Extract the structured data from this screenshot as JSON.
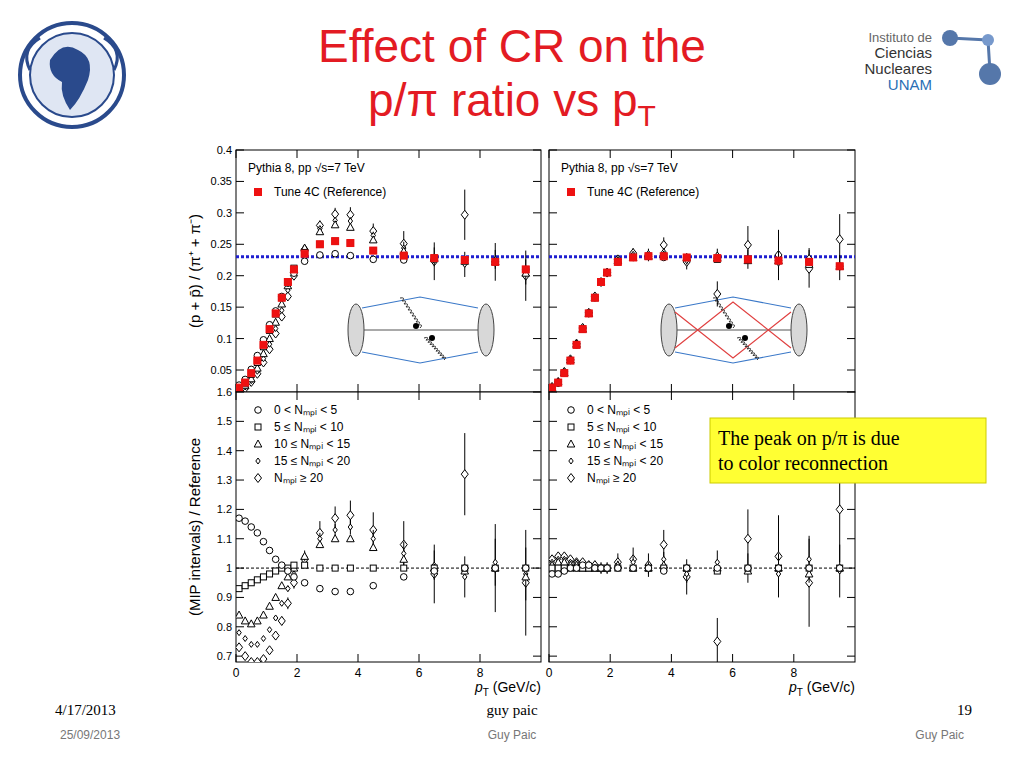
{
  "slide": {
    "title": [
      "Effect of CR on the",
      "p/π ratio vs pT"
    ],
    "logo_text": [
      "Instituto de",
      "Ciencias",
      "Nucleares",
      "UNAM"
    ],
    "annotation": [
      "The peak on p/π is due",
      "to color reconnection"
    ],
    "footer": {
      "date": "4/17/2013",
      "date_2": "25/09/2013",
      "center": "guy paic",
      "center_2": "Guy Paic",
      "page": "19",
      "right_2": "Guy Paic"
    }
  },
  "chart_data": [
    {
      "type": "scatter",
      "ylabel": "(p + p̄) / (π⁺ + π⁻)",
      "annotations": [
        "Pythia 8, pp √s=7 TeV"
      ],
      "legend": "top-left",
      "tick_labels": "y",
      "xlim": [
        0,
        10
      ],
      "xticks": [
        0,
        2,
        4,
        6,
        8
      ],
      "ylim": [
        0.015,
        0.4
      ],
      "yticks": [
        0.05,
        0.1,
        0.15,
        0.2,
        0.25,
        0.3,
        0.35,
        0.4
      ],
      "reference_line": {
        "value": 0.23,
        "color": "#1f1fd0",
        "line_style": "dotted"
      },
      "x": [
        0.1,
        0.3,
        0.5,
        0.7,
        0.9,
        1.1,
        1.3,
        1.5,
        1.7,
        1.9,
        2.25,
        2.75,
        3.25,
        3.75,
        4.5,
        5.5,
        6.5,
        7.5,
        8.5,
        9.5
      ],
      "series": [
        {
          "name": "Tune 4C (Reference)",
          "color": "#ee1111",
          "marker": "filled_square",
          "values": [
            0.022,
            0.03,
            0.045,
            0.065,
            0.09,
            0.115,
            0.14,
            0.165,
            0.19,
            0.21,
            0.235,
            0.25,
            0.255,
            0.252,
            0.24,
            0.232,
            0.228,
            0.225,
            0.222,
            0.21
          ]
        },
        {
          "color": "#000000",
          "marker": "circle",
          "values": [
            0.026,
            0.035,
            0.051,
            0.073,
            0.098,
            0.122,
            0.144,
            0.167,
            0.188,
            0.204,
            0.223,
            0.233,
            0.235,
            0.232,
            0.226,
            0.225,
            0.226,
            0.225,
            0.222,
            0.21
          ]
        },
        {
          "color": "#000000",
          "marker": "square",
          "values": [
            0.02,
            0.028,
            0.043,
            0.062,
            0.087,
            0.113,
            0.139,
            0.165,
            0.19,
            0.212,
            0.237,
            0.25,
            0.255,
            0.252,
            0.24,
            0.232,
            0.228,
            0.225,
            0.222,
            0.21
          ]
        },
        {
          "color": "#000000",
          "marker": "triangle",
          "values": [
            0.018,
            0.025,
            0.036,
            0.053,
            0.076,
            0.1,
            0.126,
            0.155,
            0.184,
            0.21,
            0.244,
            0.27,
            0.281,
            0.277,
            0.257,
            0.239,
            0.228,
            0.223,
            0.222,
            0.204
          ]
        },
        {
          "color": "#000000",
          "marker": "diamond",
          "values": [
            0.017,
            0.023,
            0.033,
            0.048,
            0.068,
            0.091,
            0.116,
            0.145,
            0.177,
            0.206,
            0.244,
            0.275,
            0.288,
            0.287,
            0.264,
            0.244,
            0.23,
            0.218,
            0.226,
            0.206
          ],
          "errors": [
            0.001,
            0.001,
            0.001,
            0.001,
            0.001,
            0.001,
            0.002,
            0.002,
            0.002,
            0.002,
            0.003,
            0.004,
            0.005,
            0.006,
            0.006,
            0.01,
            0.015,
            0.02,
            0.015,
            0.02
          ]
        },
        {
          "color": "#000000",
          "marker": "thin_diamond",
          "values": [
            0.016,
            0.021,
            0.031,
            0.044,
            0.062,
            0.083,
            0.108,
            0.135,
            0.167,
            0.2,
            0.242,
            0.28,
            0.298,
            0.297,
            0.271,
            0.251,
            0.223,
            0.297,
            0.222,
            0.2
          ],
          "errors": [
            0.001,
            0.001,
            0.001,
            0.002,
            0.002,
            0.002,
            0.003,
            0.003,
            0.004,
            0.004,
            0.006,
            0.008,
            0.01,
            0.012,
            0.012,
            0.02,
            0.03,
            0.04,
            0.03,
            0.04
          ]
        }
      ]
    },
    {
      "type": "scatter",
      "annotations": [
        "Pythia 8, pp √s=7 TeV"
      ],
      "legend": "top-left",
      "tick_labels": false,
      "xlim": [
        0,
        10
      ],
      "xticks": [
        0,
        2,
        4,
        6,
        8
      ],
      "ylim": [
        0.015,
        0.4
      ],
      "yticks": [
        0.05,
        0.1,
        0.15,
        0.2,
        0.25,
        0.3,
        0.35,
        0.4
      ],
      "reference_line": {
        "value": 0.23,
        "color": "#1f1fd0",
        "line_style": "dotted"
      },
      "x": [
        0.1,
        0.3,
        0.5,
        0.7,
        0.9,
        1.1,
        1.3,
        1.5,
        1.7,
        1.9,
        2.25,
        2.75,
        3.25,
        3.75,
        4.5,
        5.5,
        6.5,
        7.5,
        8.5,
        9.5
      ],
      "series": [
        {
          "name": "Tune 4C (Reference)",
          "color": "#ee1111",
          "marker": "filled_square",
          "values": [
            0.022,
            0.03,
            0.045,
            0.065,
            0.09,
            0.115,
            0.14,
            0.165,
            0.19,
            0.205,
            0.222,
            0.229,
            0.231,
            0.231,
            0.229,
            0.228,
            0.226,
            0.224,
            0.222,
            0.215
          ]
        },
        {
          "color": "#000000",
          "marker": "circle",
          "values": [
            0.022,
            0.029,
            0.045,
            0.065,
            0.09,
            0.116,
            0.141,
            0.165,
            0.19,
            0.205,
            0.222,
            0.229,
            0.231,
            0.229,
            0.229,
            0.228,
            0.226,
            0.224,
            0.222,
            0.215
          ]
        },
        {
          "color": "#000000",
          "marker": "square",
          "values": [
            0.022,
            0.03,
            0.045,
            0.065,
            0.09,
            0.115,
            0.14,
            0.165,
            0.19,
            0.205,
            0.222,
            0.229,
            0.231,
            0.231,
            0.229,
            0.226,
            0.226,
            0.224,
            0.222,
            0.215
          ]
        },
        {
          "color": "#000000",
          "marker": "triangle",
          "values": [
            0.022,
            0.031,
            0.046,
            0.066,
            0.091,
            0.115,
            0.14,
            0.165,
            0.19,
            0.205,
            0.224,
            0.229,
            0.231,
            0.233,
            0.229,
            0.228,
            0.224,
            0.224,
            0.218,
            0.215
          ]
        },
        {
          "color": "#000000",
          "marker": "diamond",
          "values": [
            0.022,
            0.031,
            0.046,
            0.066,
            0.092,
            0.116,
            0.141,
            0.165,
            0.19,
            0.205,
            0.224,
            0.234,
            0.231,
            0.238,
            0.224,
            0.233,
            0.226,
            0.22,
            0.229,
            0.213
          ],
          "errors": [
            0.001,
            0.001,
            0.001,
            0.001,
            0.001,
            0.001,
            0.002,
            0.002,
            0.002,
            0.002,
            0.003,
            0.004,
            0.005,
            0.006,
            0.006,
            0.01,
            0.015,
            0.02,
            0.015,
            0.02
          ]
        },
        {
          "color": "#000000",
          "marker": "thin_diamond",
          "values": [
            0.023,
            0.031,
            0.047,
            0.067,
            0.092,
            0.117,
            0.141,
            0.167,
            0.19,
            0.205,
            0.226,
            0.236,
            0.233,
            0.249,
            0.222,
            0.171,
            0.249,
            0.233,
            0.211,
            0.258
          ],
          "errors": [
            0.001,
            0.001,
            0.001,
            0.002,
            0.002,
            0.002,
            0.003,
            0.003,
            0.004,
            0.004,
            0.006,
            0.008,
            0.01,
            0.012,
            0.012,
            0.02,
            0.03,
            0.04,
            0.03,
            0.04
          ]
        }
      ]
    },
    {
      "type": "scatter",
      "ylabel": "(MIP intervals) / Reference",
      "xlabel": "pT (GeV/c)",
      "legend": "top-left",
      "tick_labels": true,
      "xlim": [
        0,
        10
      ],
      "xticks": [
        0,
        2,
        4,
        6,
        8
      ],
      "ylim": [
        0.68,
        1.6
      ],
      "yticks": [
        0.7,
        0.8,
        0.9,
        1,
        1.1,
        1.2,
        1.3,
        1.4,
        1.5,
        1.6
      ],
      "reference_line": {
        "value": 1,
        "color": "#000000",
        "line_style": "dotted"
      },
      "x": [
        0.1,
        0.3,
        0.5,
        0.7,
        0.9,
        1.1,
        1.3,
        1.5,
        1.7,
        1.9,
        2.25,
        2.75,
        3.25,
        3.75,
        4.5,
        5.5,
        6.5,
        7.5,
        8.5,
        9.5
      ],
      "series": [
        {
          "name": "0 < Nₘₚᵢ < 5",
          "color": "#000000",
          "marker": "circle",
          "values": [
            1.17,
            1.16,
            1.14,
            1.12,
            1.09,
            1.06,
            1.03,
            1.01,
            0.99,
            0.97,
            0.95,
            0.93,
            0.92,
            0.92,
            0.94,
            0.97,
            0.99,
            1,
            1,
            1
          ]
        },
        {
          "name": "5 ≤ Nₘₚᵢ < 10",
          "color": "#000000",
          "marker": "square",
          "values": [
            0.93,
            0.94,
            0.95,
            0.96,
            0.97,
            0.98,
            0.99,
            1,
            1,
            1.01,
            1.01,
            1,
            1,
            1,
            1,
            1,
            1,
            1,
            1,
            1
          ]
        },
        {
          "name": "10 ≤ Nₘₚᵢ < 15",
          "color": "#000000",
          "marker": "triangle",
          "values": [
            0.84,
            0.82,
            0.81,
            0.82,
            0.84,
            0.87,
            0.9,
            0.94,
            0.97,
            1,
            1.04,
            1.08,
            1.1,
            1.1,
            1.07,
            1.03,
            1,
            0.99,
            1,
            0.97
          ]
        },
        {
          "name": "15 ≤ Nₘₚᵢ < 20",
          "color": "#000000",
          "marker": "diamond",
          "values": [
            0.78,
            0.76,
            0.74,
            0.74,
            0.76,
            0.79,
            0.83,
            0.88,
            0.93,
            0.98,
            1.04,
            1.1,
            1.13,
            1.14,
            1.1,
            1.05,
            1.01,
            0.97,
            1.02,
            0.98
          ],
          "errors": [
            0.005,
            0.005,
            0.005,
            0.005,
            0.005,
            0.005,
            0.008,
            0.008,
            0.01,
            0.01,
            0.015,
            0.02,
            0.02,
            0.025,
            0.03,
            0.04,
            0.05,
            0.07,
            0.08,
            0.09
          ]
        },
        {
          "name": "Nₘₚᵢ ≥ 20",
          "color": "#000000",
          "marker": "thin_diamond",
          "values": [
            0.73,
            0.7,
            0.68,
            0.68,
            0.69,
            0.72,
            0.77,
            0.82,
            0.88,
            0.95,
            1.03,
            1.12,
            1.17,
            1.18,
            1.13,
            1.08,
            0.98,
            1.32,
            1,
            0.95
          ],
          "errors": [
            0.01,
            0.01,
            0.01,
            0.01,
            0.01,
            0.01,
            0.015,
            0.015,
            0.02,
            0.02,
            0.03,
            0.04,
            0.04,
            0.05,
            0.06,
            0.08,
            0.1,
            0.14,
            0.15,
            0.18
          ]
        }
      ]
    },
    {
      "type": "scatter",
      "xlabel": "pT (GeV/c)",
      "legend": "top-left",
      "tick_labels": "x",
      "xlim": [
        0,
        10
      ],
      "xticks": [
        0,
        2,
        4,
        6,
        8
      ],
      "ylim": [
        0.68,
        1.6
      ],
      "yticks": [
        0.7,
        0.8,
        0.9,
        1,
        1.1,
        1.2,
        1.3,
        1.4,
        1.5,
        1.6
      ],
      "reference_line": {
        "value": 1,
        "color": "#000000",
        "line_style": "dotted"
      },
      "x": [
        0.1,
        0.3,
        0.5,
        0.7,
        0.9,
        1.1,
        1.3,
        1.5,
        1.7,
        1.9,
        2.25,
        2.75,
        3.25,
        3.75,
        4.5,
        5.5,
        6.5,
        7.5,
        8.5,
        9.5
      ],
      "series": [
        {
          "name": "0 < Nₘₚᵢ < 5",
          "color": "#000000",
          "marker": "circle",
          "values": [
            0.98,
            0.98,
            0.99,
            1,
            1,
            1.01,
            1.01,
            1,
            1,
            1,
            1,
            1,
            1,
            0.99,
            1,
            1,
            1,
            1,
            1,
            1
          ]
        },
        {
          "name": "5 ≤ Nₘₚᵢ < 10",
          "color": "#000000",
          "marker": "square",
          "values": [
            1,
            1,
            1,
            1,
            1,
            1,
            1,
            1,
            1,
            1,
            1,
            1,
            1,
            1,
            1,
            0.99,
            1,
            1,
            1,
            1
          ]
        },
        {
          "name": "10 ≤ Nₘₚᵢ < 15",
          "color": "#000000",
          "marker": "triangle",
          "values": [
            1.01,
            1.02,
            1.02,
            1.01,
            1.01,
            1,
            1,
            1,
            1,
            1,
            1.01,
            1,
            1,
            1.01,
            1,
            1,
            0.99,
            1,
            0.98,
            1
          ]
        },
        {
          "name": "15 ≤ Nₘₚᵢ < 20",
          "color": "#000000",
          "marker": "diamond",
          "values": [
            1.02,
            1.03,
            1.03,
            1.02,
            1.02,
            1.01,
            1.01,
            1,
            1,
            1,
            1.01,
            1.02,
            1,
            1.03,
            0.98,
            1.02,
            1,
            0.98,
            1.03,
            0.99
          ],
          "errors": [
            0.005,
            0.005,
            0.005,
            0.005,
            0.005,
            0.005,
            0.008,
            0.008,
            0.01,
            0.01,
            0.015,
            0.02,
            0.02,
            0.025,
            0.03,
            0.04,
            0.05,
            0.07,
            0.08,
            0.09
          ]
        },
        {
          "name": "Nₘₚᵢ ≥ 20",
          "color": "#000000",
          "marker": "thin_diamond",
          "values": [
            1.03,
            1.04,
            1.04,
            1.03,
            1.02,
            1.02,
            1.01,
            1.01,
            1,
            1,
            1.02,
            1.03,
            1.01,
            1.08,
            0.97,
            0.75,
            1.1,
            1.04,
            0.95,
            1.2
          ],
          "errors": [
            0.01,
            0.01,
            0.01,
            0.01,
            0.01,
            0.01,
            0.015,
            0.015,
            0.02,
            0.02,
            0.03,
            0.04,
            0.04,
            0.05,
            0.06,
            0.08,
            0.1,
            0.14,
            0.15,
            0.18
          ]
        }
      ]
    }
  ]
}
